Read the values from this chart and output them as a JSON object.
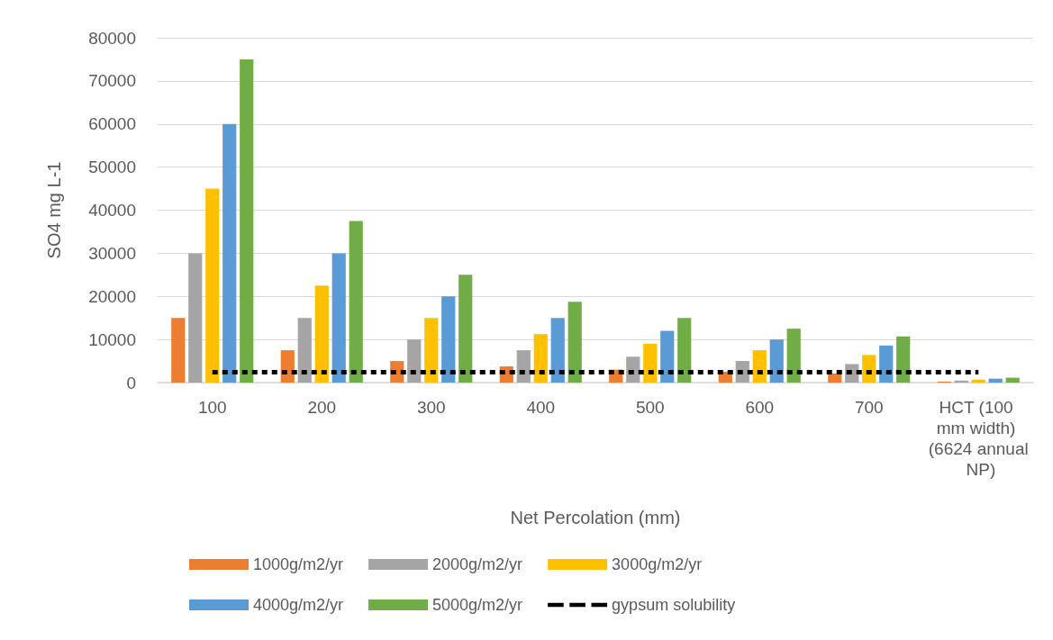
{
  "chart_data": {
    "type": "bar",
    "xlabel": "Net Percolation (mm)",
    "ylabel": "SO4 mg L-1",
    "categories": [
      "100",
      "200",
      "300",
      "400",
      "500",
      "600",
      "700",
      "HCT (100 mm width) (6624 annual NP)"
    ],
    "series": [
      {
        "name": "1000g/m2/yr",
        "color": "#ed7d31",
        "values": [
          15000,
          7500,
          5000,
          3750,
          3000,
          2500,
          2100,
          230
        ]
      },
      {
        "name": "2000g/m2/yr",
        "color": "#a5a5a5",
        "values": [
          30000,
          15000,
          10000,
          7500,
          6000,
          5000,
          4300,
          450
        ]
      },
      {
        "name": "3000g/m2/yr",
        "color": "#ffc000",
        "values": [
          45000,
          22500,
          15000,
          11250,
          9000,
          7500,
          6400,
          680
        ]
      },
      {
        "name": "4000g/m2/yr",
        "color": "#5b9bd5",
        "values": [
          60000,
          30000,
          20000,
          15000,
          12000,
          10000,
          8600,
          910
        ]
      },
      {
        "name": "5000g/m2/yr",
        "color": "#70ad47",
        "values": [
          75000,
          37500,
          25000,
          18750,
          15000,
          12500,
          10700,
          1130
        ]
      },
      {
        "name": "gypsum solubility",
        "type": "line",
        "color": "#000000",
        "line_style": "dashed",
        "marker": "none",
        "values": [
          2400,
          2400,
          2400,
          2400,
          2400,
          2400,
          2400,
          2400
        ]
      }
    ],
    "ylim": [
      0,
      80000
    ],
    "yticks": [
      0,
      10000,
      20000,
      30000,
      40000,
      50000,
      60000,
      70000,
      80000
    ],
    "grid": "y",
    "legend": "bottom"
  }
}
